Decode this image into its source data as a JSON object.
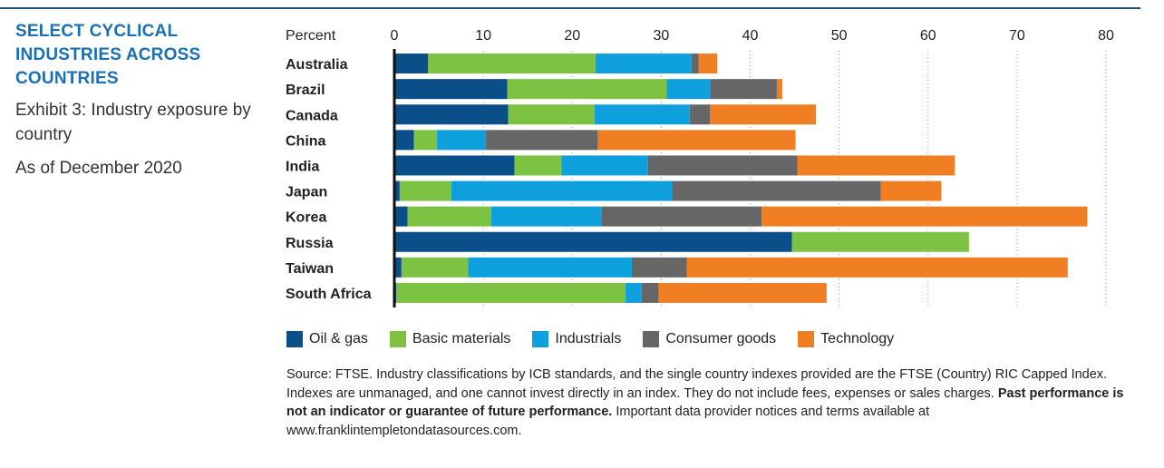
{
  "header": {
    "title": "SELECT CYCLICAL INDUSTRIES ACROSS COUNTRIES",
    "subtitle": "Exhibit 3: Industry exposure by country",
    "date": "As of December 2020"
  },
  "colors": {
    "oil_gas": "#0b4f8a",
    "basic_materials": "#7dc242",
    "industrials": "#0ea0dc",
    "consumer_goods": "#666666",
    "technology": "#f07f24"
  },
  "chart_data": {
    "type": "bar",
    "orientation": "horizontal",
    "stacked": true,
    "xlabel": "Percent",
    "xlim": [
      0,
      80
    ],
    "xticks": [
      0,
      10,
      20,
      30,
      40,
      50,
      60,
      70,
      80
    ],
    "categories": [
      "Australia",
      "Brazil",
      "Canada",
      "China",
      "India",
      "Japan",
      "Korea",
      "Russia",
      "Taiwan",
      "South Africa"
    ],
    "series": [
      {
        "name": "Oil & gas",
        "color": "#0b4f8a",
        "values": [
          3.8,
          12.7,
          12.8,
          2.2,
          13.5,
          0.6,
          1.5,
          44.7,
          0.8,
          0.2
        ]
      },
      {
        "name": "Basic materials",
        "color": "#7dc242",
        "values": [
          18.8,
          17.9,
          9.7,
          2.6,
          5.3,
          5.8,
          9.4,
          19.9,
          7.5,
          25.8
        ]
      },
      {
        "name": "Industrials",
        "color": "#0ea0dc",
        "values": [
          10.8,
          4.9,
          10.7,
          5.5,
          9.7,
          24.8,
          12.4,
          0.0,
          18.4,
          1.8
        ]
      },
      {
        "name": "Consumer goods",
        "color": "#666666",
        "values": [
          0.8,
          7.5,
          2.3,
          12.6,
          16.8,
          23.5,
          18.0,
          0.0,
          6.2,
          1.9
        ]
      },
      {
        "name": "Technology",
        "color": "#f07f24",
        "values": [
          2.1,
          0.6,
          11.9,
          22.2,
          17.7,
          6.8,
          36.6,
          0.0,
          42.8,
          18.9
        ]
      }
    ],
    "grid": "vertical-dotted",
    "legend": "bottom"
  },
  "legend": {
    "items": [
      {
        "label": "Oil & gas",
        "color": "#0b4f8a"
      },
      {
        "label": "Basic materials",
        "color": "#7dc242"
      },
      {
        "label": "Industrials",
        "color": "#0ea0dc"
      },
      {
        "label": "Consumer goods",
        "color": "#666666"
      },
      {
        "label": "Technology",
        "color": "#f07f24"
      }
    ]
  },
  "source": {
    "text1": "Source: FTSE. Industry classifications by ICB standards, and the single country indexes provided are the FTSE (Country) RIC Capped Index. Indexes are unmanaged, and one cannot invest directly in an index. They do not include fees, expenses or sales charges. ",
    "bold": "Past performance is not an indicator or guarantee of future performance.",
    "text2": " Important data provider notices and terms available at www.franklintempletondatasources.com."
  }
}
